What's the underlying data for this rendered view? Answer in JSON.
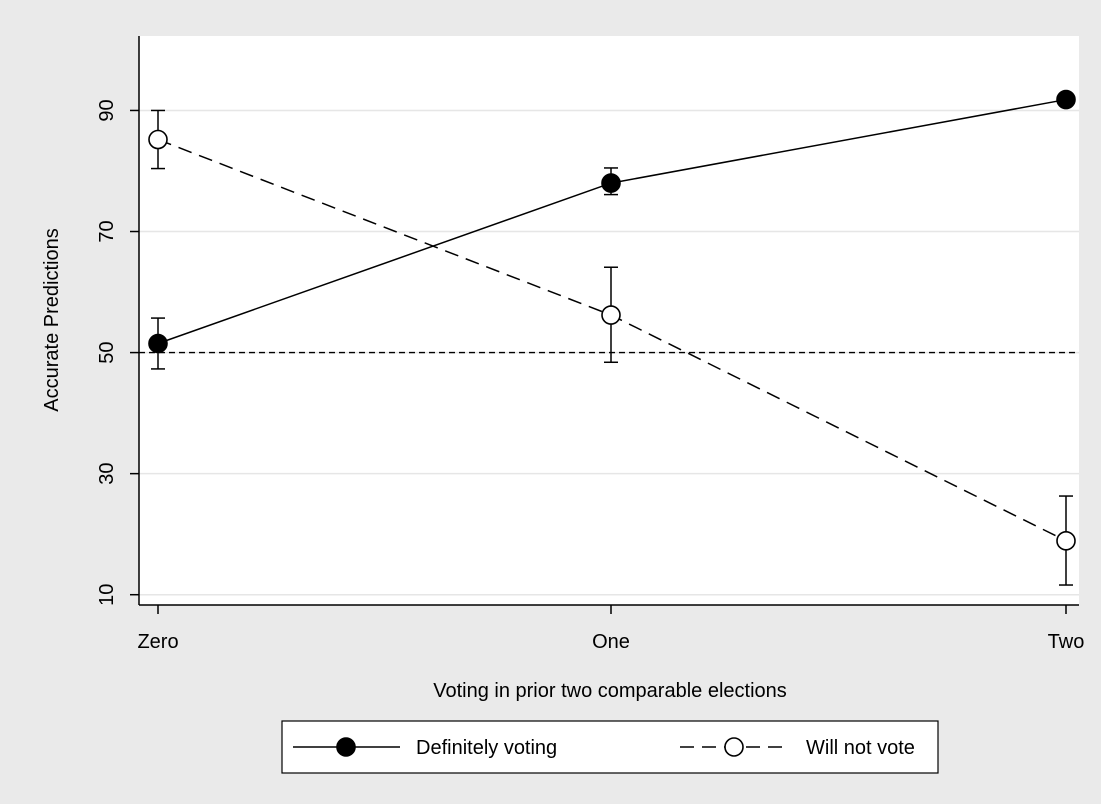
{
  "chart_data": {
    "type": "line",
    "xlabel": "Voting in prior two comparable elections",
    "ylabel": "Accurate Predictions",
    "categories": [
      "Zero",
      "One",
      "Two"
    ],
    "yticks": [
      10,
      30,
      50,
      70,
      90
    ],
    "ylim": [
      8.3,
      102.3
    ],
    "grid": true,
    "reference_line": 50,
    "legend_position": "bottom",
    "series": [
      {
        "name": "Definitely voting",
        "line_style": "solid",
        "marker": "filled-circle",
        "values": [
          51.5,
          78.0,
          91.8
        ],
        "ci_low": [
          47.3,
          76.1,
          null
        ],
        "ci_high": [
          55.7,
          80.5,
          null
        ]
      },
      {
        "name": "Will not vote",
        "line_style": "dashed",
        "marker": "hollow-circle",
        "values": [
          85.2,
          56.2,
          18.9
        ],
        "ci_low": [
          80.4,
          48.4,
          11.6
        ],
        "ci_high": [
          90.0,
          64.1,
          26.3
        ]
      }
    ]
  },
  "colors": {
    "background": "#eaeaea",
    "plot_background": "#ffffff",
    "grid": "#e6e6e6",
    "ink": "#000000"
  }
}
